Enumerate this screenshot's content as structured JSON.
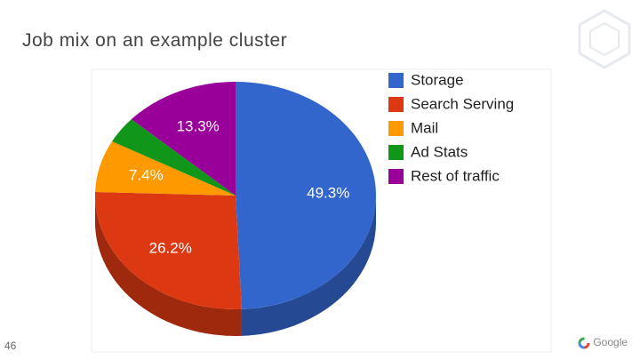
{
  "slide_title": "Job mix on an example cluster",
  "page_number": "46",
  "logo": "Google",
  "chart_data": {
    "type": "pie",
    "categories": [
      "Storage",
      "Search Serving",
      "Mail",
      "Ad Stats",
      "Rest of traffic"
    ],
    "values": [
      49.3,
      26.2,
      7.4,
      3.8,
      13.3
    ],
    "value_labels": [
      "49.3%",
      "26.2%",
      "7.4%",
      null,
      "13.3%"
    ],
    "colors": [
      "#3366cc",
      "#dc3912",
      "#ff9900",
      "#109618",
      "#990099"
    ],
    "legend": "right"
  }
}
